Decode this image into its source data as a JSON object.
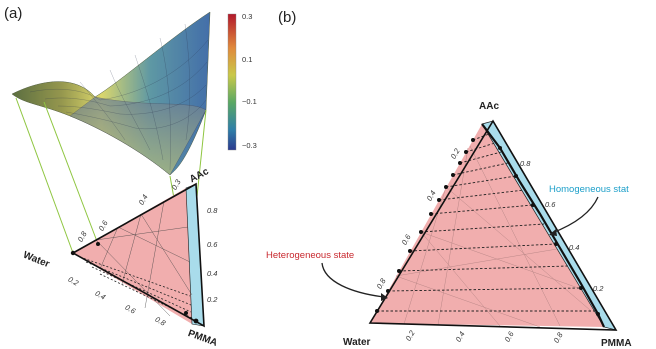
{
  "panel_a": {
    "label": "(a)",
    "corners": {
      "top": "AAc",
      "left": "Water",
      "right": "PMMA"
    },
    "ticks_bottom": [
      "0.2",
      "0.4",
      "0.6",
      "0.8"
    ],
    "ticks_right": [
      "0.8",
      "0.6",
      "0.4",
      "0.2"
    ],
    "ticks_left": [
      "0.8",
      "0.6"
    ],
    "ticks_top": [
      "0.4",
      "0.3"
    ],
    "colorbar": {
      "ticks": [
        "0.3",
        "0.1",
        "−0.1",
        "−0.3"
      ]
    }
  },
  "panel_b": {
    "label": "(b)",
    "corners": {
      "top": "AAc",
      "left": "Water",
      "right": "PMMA"
    },
    "ticks_bottom": [
      "0.2",
      "0.4",
      "0.6",
      "0.8"
    ],
    "ticks_right": [
      "0.8",
      "0.6",
      "0.4",
      "0.2"
    ],
    "ticks_left": [
      "0.8",
      "0.6",
      "0.4",
      "0.2"
    ],
    "homogeneous_label": "Homogeneous stat",
    "heterogeneous_label": "Heterogeneous state"
  },
  "colors": {
    "two_phase_fill": "#f1aeae",
    "one_phase_fill": "#a9dceb",
    "tie_line": "#222222",
    "projection_line": "#8fc641"
  }
}
